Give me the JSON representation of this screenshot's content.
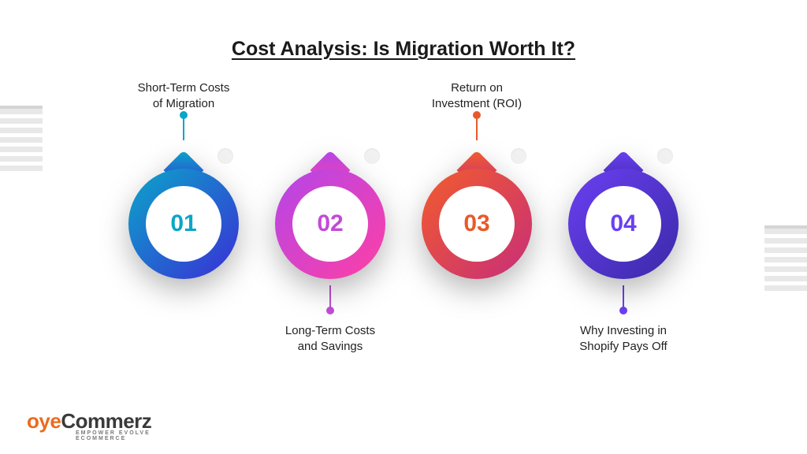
{
  "title": "Cost Analysis: Is Migration Worth It?",
  "title_fontsize": 25,
  "background_color": "#ffffff",
  "items": [
    {
      "number": "01",
      "label": "Short-Term Costs\nof Migration",
      "label_position": "top",
      "gradient_from": "#0aa6c9",
      "gradient_to": "#3a2ed6",
      "number_color": "#0aa6c9",
      "connector_color": "#0aa6c9"
    },
    {
      "number": "02",
      "label": "Long-Term Costs\nand Savings",
      "label_position": "bottom",
      "gradient_from": "#b346ea",
      "gradient_to": "#ff3fa4",
      "number_color": "#c24bd7",
      "connector_color": "#c24bd7"
    },
    {
      "number": "03",
      "label": "Return on\nInvestment (ROI)",
      "label_position": "top",
      "gradient_from": "#f25c2c",
      "gradient_to": "#c72e7a",
      "number_color": "#e85a2b",
      "connector_color": "#e85a2b"
    },
    {
      "number": "04",
      "label": "Why Investing in\nShopify Pays Off",
      "label_position": "bottom",
      "gradient_from": "#6b3ff2",
      "gradient_to": "#3a2aa8",
      "number_color": "#6b3ff2",
      "connector_color": "#6b3ff2"
    }
  ],
  "ghost_dot_color": "#f1f1f1",
  "drop_shadow": "0 14px 18px rgba(0,0,0,0.28)",
  "pin": {
    "outer_diameter": 140,
    "inner_diameter": 96,
    "number_fontsize": 30
  },
  "logo": {
    "brand_left": "oye",
    "brand_right": "Commerz",
    "tagline": "EMPOWER EVOLVE ECOMMERCE",
    "accent_color": "#ec6b1f",
    "text_color": "#3a3a3a"
  },
  "decor_blinds": {
    "slat_color": "#e8e8e8",
    "slat_count": 7
  }
}
